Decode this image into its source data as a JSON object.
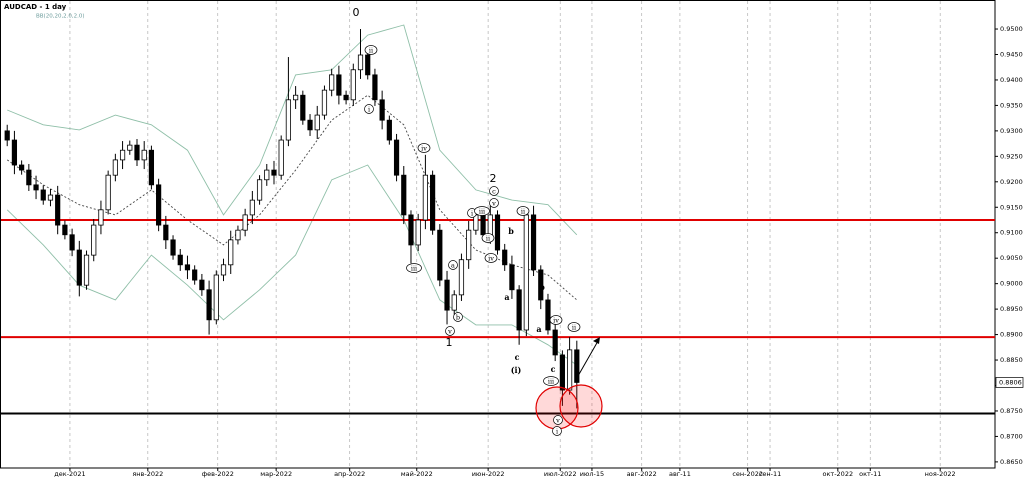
{
  "chart_data": {
    "type": "candlestick",
    "title": "AUDCAD - 1 day",
    "indicator": "BB(20,20,2.0,2.0)",
    "x": [
      1,
      2,
      3,
      4,
      5,
      6,
      7,
      8,
      9,
      10,
      11,
      12,
      13,
      14,
      15,
      16,
      17,
      18,
      19,
      20,
      21,
      22,
      23,
      24,
      25,
      26,
      27,
      28,
      29,
      30,
      31,
      32,
      33,
      34,
      35,
      36,
      37,
      38,
      39,
      40,
      41,
      42,
      43,
      44,
      45,
      46,
      47,
      48,
      49,
      50,
      51,
      52,
      53,
      54,
      55,
      56,
      57,
      58,
      59,
      60,
      61,
      62,
      63,
      64,
      65,
      66,
      67,
      68,
      69,
      70,
      71,
      72,
      73,
      74,
      75,
      76,
      77,
      78,
      79,
      80
    ],
    "open": [
      0.93,
      0.9282,
      0.9233,
      0.9223,
      0.9194,
      0.9184,
      0.9164,
      0.9174,
      0.9115,
      0.9096,
      0.9066,
      0.8997,
      0.9056,
      0.9115,
      0.9145,
      0.9213,
      0.9243,
      0.9262,
      0.9272,
      0.9243,
      0.9262,
      0.9194,
      0.9115,
      0.9086,
      0.9056,
      0.9037,
      0.9027,
      0.9007,
      0.8988,
      0.8929,
      0.9017,
      0.9037,
      0.9086,
      0.9105,
      0.9135,
      0.9164,
      0.9204,
      0.9223,
      0.9213,
      0.9282,
      0.9361,
      0.937,
      0.9321,
      0.9302,
      0.9331,
      0.938,
      0.941,
      0.937,
      0.9361,
      0.942,
      0.9449,
      0.941,
      0.9361,
      0.9321,
      0.9282,
      0.9213,
      0.9135,
      0.9076,
      0.9125,
      0.9213,
      0.9105,
      0.9007,
      0.8948,
      0.8978,
      0.9047,
      0.9105,
      0.9135,
      0.9096,
      0.9135,
      0.9066,
      0.9037,
      0.8988,
      0.8909,
      0.9135,
      0.9027,
      0.8968,
      0.8909,
      0.886,
      0.8791,
      0.887
    ],
    "high": [
      0.9312,
      0.93,
      0.9242,
      0.9235,
      0.9212,
      0.9193,
      0.9186,
      0.9192,
      0.9124,
      0.9108,
      0.9084,
      0.9065,
      0.9127,
      0.9163,
      0.9222,
      0.9255,
      0.928,
      0.9281,
      0.9284,
      0.928,
      0.9271,
      0.9206,
      0.9133,
      0.9095,
      0.9068,
      0.9055,
      0.9036,
      0.9019,
      0.9006,
      0.9026,
      0.9049,
      0.9104,
      0.9114,
      0.9147,
      0.9182,
      0.9213,
      0.9235,
      0.9241,
      0.9291,
      0.9445,
      0.9388,
      0.9379,
      0.9333,
      0.9349,
      0.9389,
      0.9422,
      0.9428,
      0.9379,
      0.9432,
      0.95,
      0.9458,
      0.9422,
      0.9379,
      0.933,
      0.9294,
      0.9231,
      0.9144,
      0.9137,
      0.9253,
      0.9222,
      0.9117,
      0.9025,
      0.8987,
      0.9059,
      0.9123,
      0.9144,
      0.9147,
      0.9153,
      0.9144,
      0.9078,
      0.9055,
      0.8997,
      0.9147,
      0.9153,
      0.9036,
      0.898,
      0.8927,
      0.8869,
      0.8895,
      0.8888
    ],
    "low": [
      0.927,
      0.9215,
      0.9214,
      0.9182,
      0.9166,
      0.9155,
      0.9152,
      0.9097,
      0.9087,
      0.9054,
      0.8975,
      0.8988,
      0.9044,
      0.9097,
      0.9136,
      0.9201,
      0.9225,
      0.9253,
      0.9231,
      0.9225,
      0.9185,
      0.9103,
      0.9068,
      0.9047,
      0.9025,
      0.9009,
      0.8998,
      0.8976,
      0.89,
      0.892,
      0.9005,
      0.9019,
      0.9077,
      0.9093,
      0.9117,
      0.9155,
      0.9192,
      0.9195,
      0.9204,
      0.927,
      0.9343,
      0.9312,
      0.929,
      0.9284,
      0.9322,
      0.9368,
      0.9352,
      0.9352,
      0.9349,
      0.9402,
      0.9401,
      0.9349,
      0.9303,
      0.9273,
      0.9201,
      0.9117,
      0.904,
      0.9064,
      0.9107,
      0.9096,
      0.8995,
      0.892,
      0.8939,
      0.8966,
      0.9029,
      0.9096,
      0.9084,
      0.9078,
      0.9057,
      0.9025,
      0.897,
      0.888,
      0.8897,
      0.9015,
      0.895,
      0.89,
      0.8848,
      0.876,
      0.8782,
      0.8755
    ],
    "close": [
      0.9282,
      0.9233,
      0.9223,
      0.9194,
      0.9184,
      0.9164,
      0.9174,
      0.9115,
      0.9096,
      0.9066,
      0.8997,
      0.9056,
      0.9115,
      0.9145,
      0.9213,
      0.9243,
      0.9262,
      0.9272,
      0.9243,
      0.9262,
      0.9194,
      0.9115,
      0.9086,
      0.9056,
      0.9037,
      0.9027,
      0.9007,
      0.8988,
      0.8929,
      0.9017,
      0.9037,
      0.9086,
      0.9105,
      0.9135,
      0.9164,
      0.9204,
      0.9223,
      0.9213,
      0.9282,
      0.9361,
      0.937,
      0.9321,
      0.9302,
      0.9331,
      0.938,
      0.941,
      0.937,
      0.9361,
      0.942,
      0.9449,
      0.941,
      0.9361,
      0.9321,
      0.9282,
      0.9213,
      0.9135,
      0.9076,
      0.9125,
      0.9213,
      0.9105,
      0.9007,
      0.8948,
      0.8978,
      0.9047,
      0.9105,
      0.9135,
      0.9096,
      0.9135,
      0.9066,
      0.9037,
      0.8988,
      0.8909,
      0.9135,
      0.9027,
      0.8968,
      0.8909,
      0.886,
      0.8791,
      0.887,
      0.8806
    ],
    "up_color": "#ffffff",
    "down_color": "#000000",
    "bands": {
      "x": [
        1,
        6,
        11,
        16,
        21,
        26,
        31,
        36,
        41,
        46,
        51,
        56,
        61,
        66,
        71,
        76,
        80
      ],
      "upper": [
        0.9341,
        0.9312,
        0.9302,
        0.9331,
        0.9312,
        0.9262,
        0.9135,
        0.9233,
        0.941,
        0.942,
        0.9488,
        0.9508,
        0.9262,
        0.9184,
        0.9164,
        0.9155,
        0.9096
      ],
      "middle": [
        0.9243,
        0.9194,
        0.9155,
        0.9135,
        0.9184,
        0.9125,
        0.9076,
        0.9135,
        0.9223,
        0.9321,
        0.937,
        0.9312,
        0.9145,
        0.9066,
        0.9037,
        0.9017,
        0.8968
      ],
      "lower": [
        0.9145,
        0.9076,
        0.8997,
        0.8968,
        0.9056,
        0.8997,
        0.8929,
        0.8988,
        0.9056,
        0.9204,
        0.9233,
        0.9125,
        0.8968,
        0.8919,
        0.8919,
        0.888,
        0.884
      ],
      "band_color": "#8fbfa8",
      "middle_color": "#444444"
    },
    "levels": [
      {
        "value": 0.9125,
        "color": "#e00000"
      },
      {
        "value": 0.8895,
        "color": "#e00000"
      },
      {
        "value": 0.8745,
        "color": "#000000"
      }
    ],
    "last_price": 0.8806,
    "annotations": [
      "0",
      "ii",
      "i",
      "iv",
      "iii",
      "v",
      "1",
      "a",
      "b",
      "i",
      "iii",
      "2",
      "c",
      "v",
      "ii",
      "iv",
      "ii",
      "b",
      "a",
      "c",
      "(i)",
      "b",
      "a",
      "iv",
      "c",
      "iii",
      "v",
      "i",
      "ii"
    ],
    "xlim": [
      0,
      138
    ],
    "xticks": [
      {
        "value": 9.7,
        "label": "дек-2021"
      },
      {
        "value": 20.5,
        "label": "янв-2022"
      },
      {
        "value": 30.2,
        "label": "фев-2022"
      },
      {
        "value": 38.3,
        "label": "мар-2022"
      },
      {
        "value": 48.5,
        "label": "апр-2022"
      },
      {
        "value": 57.8,
        "label": "май-2022"
      },
      {
        "value": 67.7,
        "label": "июн-2022"
      },
      {
        "value": 77.7,
        "label": "июл-2022"
      },
      {
        "value": 82.1,
        "label": "июл-15"
      },
      {
        "value": 89,
        "label": "авг-2022"
      },
      {
        "value": 94.3,
        "label": "авг-11"
      },
      {
        "value": 103.7,
        "label": "сен-2022"
      },
      {
        "value": 106.8,
        "label": "сен-11"
      },
      {
        "value": 116.2,
        "label": "окт-2022"
      },
      {
        "value": 120.7,
        "label": "окт-11"
      },
      {
        "value": 130.4,
        "label": "ноя-2022"
      }
    ],
    "ylim": [
      0.8638,
      0.9557
    ],
    "yticks": [
      {
        "value": 0.865,
        "label": "0.8650"
      },
      {
        "value": 0.87,
        "label": "0.8700"
      },
      {
        "value": 0.875,
        "label": "0.8750"
      },
      {
        "value": 0.88,
        "label": "0.8800"
      },
      {
        "value": 0.885,
        "label": "0.8850"
      },
      {
        "value": 0.89,
        "label": "0.8900"
      },
      {
        "value": 0.895,
        "label": "0.8950"
      },
      {
        "value": 0.9,
        "label": "0.9000"
      },
      {
        "value": 0.905,
        "label": "0.9050"
      },
      {
        "value": 0.91,
        "label": "0.9100"
      },
      {
        "value": 0.915,
        "label": "0.9150"
      },
      {
        "value": 0.92,
        "label": "0.9200"
      },
      {
        "value": 0.925,
        "label": "0.9250"
      },
      {
        "value": 0.93,
        "label": "0.9300"
      },
      {
        "value": 0.935,
        "label": "0.9350"
      },
      {
        "value": 0.94,
        "label": "0.9400"
      },
      {
        "value": 0.945,
        "label": "0.9450"
      },
      {
        "value": 0.95,
        "label": "0.9500"
      }
    ],
    "grid": true
  }
}
